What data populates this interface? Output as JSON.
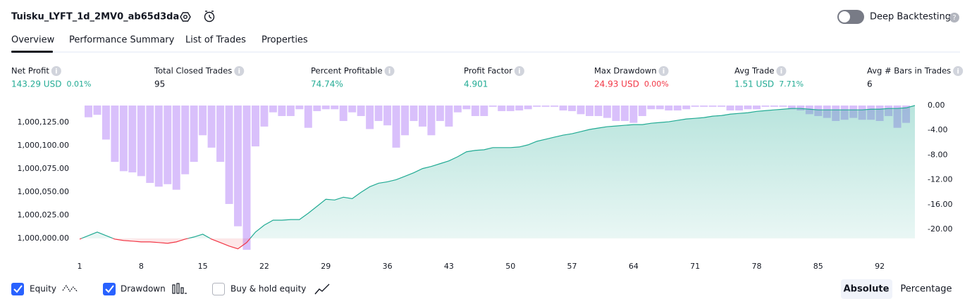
{
  "header": {
    "title": "Tuisku_LYFT_1d_2MV0_ab65d3da",
    "toggle_label": "Deep Backtesting"
  },
  "tabs": [
    "Overview",
    "Performance Summary",
    "List of Trades",
    "Properties"
  ],
  "metrics": [
    {
      "label": "Net Profit",
      "value": "143.29 USD",
      "extra": "0.01%"
    },
    {
      "label": "Total Closed Trades",
      "value": "95"
    },
    {
      "label": "Percent Profitable",
      "value": "74.74%"
    },
    {
      "label": "Profit Factor",
      "value": "4.901"
    },
    {
      "label": "Max Drawdown",
      "value": "24.93 USD",
      "extra": "0.00%"
    },
    {
      "label": "Avg Trade",
      "value": "1.51 USD",
      "extra": "7.71%"
    },
    {
      "label": "Avg # Bars in Trades",
      "value": "6"
    }
  ],
  "chart_data": {
    "type": "line",
    "x": [
      1,
      2,
      3,
      4,
      5,
      6,
      7,
      8,
      9,
      10,
      11,
      12,
      13,
      14,
      15,
      16,
      17,
      18,
      19,
      20,
      21,
      22,
      23,
      24,
      25,
      26,
      27,
      28,
      29,
      30,
      31,
      32,
      33,
      34,
      35,
      36,
      37,
      38,
      39,
      40,
      41,
      42,
      43,
      44,
      45,
      46,
      47,
      48,
      49,
      50,
      51,
      52,
      53,
      54,
      55,
      56,
      57,
      58,
      59,
      60,
      61,
      62,
      63,
      64,
      65,
      66,
      67,
      68,
      69,
      70,
      71,
      72,
      73,
      74,
      75,
      76,
      77,
      78,
      79,
      80,
      81,
      82,
      83,
      84,
      85,
      86,
      87,
      88,
      89,
      90,
      91,
      92,
      93,
      94,
      95,
      96
    ],
    "series": [
      {
        "name": "Equity",
        "color": "#22ab94",
        "values": [
          999999.2,
          1000003,
          1000006.8,
          1000003,
          999999.2,
          999997.7,
          999997,
          999996.2,
          999996.2,
          999995.5,
          999994.7,
          999996.2,
          999999.2,
          1000001.5,
          1000004.5,
          999999.2,
          999995.5,
          999991.7,
          999988.7,
          999995.5,
          1000006.8,
          1000014.3,
          1000019.6,
          1000019.6,
          1000020.3,
          1000020.3,
          1000027.1,
          1000034.6,
          1000042.2,
          1000041.4,
          1000044.4,
          1000042.9,
          1000049.7,
          1000055.7,
          1000059.5,
          1000061,
          1000063.3,
          1000067,
          1000070.8,
          1000075.3,
          1000077.6,
          1000080.6,
          1000083.6,
          1000088.1,
          1000093.4,
          1000094.9,
          1000095.6,
          1000097.9,
          1000097.9,
          1000097.9,
          1000098.6,
          1000100.9,
          1000104.7,
          1000106.9,
          1000109.2,
          1000111.4,
          1000112.9,
          1000115.2,
          1000117.5,
          1000119,
          1000120.5,
          1000121.2,
          1000122,
          1000122.7,
          1000122.7,
          1000124.2,
          1000125,
          1000125.8,
          1000127.3,
          1000128.8,
          1000129.5,
          1000130.3,
          1000131.8,
          1000132.5,
          1000134,
          1000134.8,
          1000135.5,
          1000137,
          1000137.8,
          1000138.6,
          1000139.3,
          1000140.1,
          1000140.1,
          1000139.3,
          1000138.6,
          1000138.6,
          1000138.6,
          1000138.6,
          1000138.6,
          1000138.6,
          1000139.3,
          1000139.3,
          1000140.1,
          1000140.1,
          1000140.8,
          1000143.29
        ]
      },
      {
        "name": "Drawdown",
        "type": "bar",
        "axis": "y2",
        "color": "#b98cf7",
        "values": [
          null,
          -1.9,
          -1.5,
          -5.5,
          -9.1,
          -10.6,
          -10.8,
          -11.4,
          -12.5,
          -13.1,
          -12.7,
          -13.6,
          -11.1,
          -9.1,
          -4.8,
          -6.8,
          -9.1,
          -15.9,
          -19.5,
          -23.3,
          -6.6,
          -3.4,
          -1.1,
          -1.7,
          -1.7,
          -0.6,
          -3.6,
          -0.9,
          -0.6,
          -0.6,
          -2.5,
          -1.1,
          -1.7,
          -3.8,
          -2.5,
          -3.2,
          -6.8,
          -4.8,
          -2.5,
          -3.4,
          -4.8,
          -2.5,
          -3.4,
          -1.1,
          -0.6,
          -1.7,
          -1.7,
          -0.2,
          -0.9,
          -0.9,
          -0.8,
          -0.6,
          -0.2,
          -0.2,
          -0.2,
          -0.8,
          -0.9,
          -1.4,
          -1.7,
          -1.7,
          -2,
          -2.5,
          -2.5,
          -2.8,
          -1.7,
          -0.6,
          -0.6,
          -0.8,
          -0.8,
          -0.6,
          -0.2,
          -0.2,
          -0.2,
          -0.2,
          -0.8,
          -0.8,
          -0.6,
          -0.6,
          -0.2,
          -0.2,
          -0.2,
          -0.6,
          -0.8,
          -1.4,
          -1.7,
          -2,
          -2.5,
          -2.3,
          -2,
          -2.3,
          -2.3,
          -2.5,
          -1.7,
          -3.6,
          -2.8,
          null
        ]
      }
    ],
    "xlim": [
      1,
      96
    ],
    "xticks": [
      1,
      8,
      15,
      22,
      29,
      36,
      43,
      50,
      57,
      64,
      71,
      78,
      85,
      92
    ],
    "ylim": [
      999987,
      1000143.29
    ],
    "yticks": [
      {
        "value": 1000000,
        "label": "1,000,000.00"
      },
      {
        "value": 1000025,
        "label": "1,000,025.00"
      },
      {
        "value": 1000050,
        "label": "1,000,050.00"
      },
      {
        "value": 1000075,
        "label": "1,000,075.00"
      },
      {
        "value": 1000100,
        "label": "1,000,100.00"
      },
      {
        "value": 1000125,
        "label": "1,000,125.00"
      }
    ],
    "y2lim": [
      -23.4,
      0
    ],
    "y2ticks": [
      {
        "value": 0,
        "label": "0.00"
      },
      {
        "value": -4,
        "label": "-4.00"
      },
      {
        "value": -8,
        "label": "-8.00"
      },
      {
        "value": -12,
        "label": "-12.00"
      },
      {
        "value": -16,
        "label": "-16.00"
      },
      {
        "value": -20,
        "label": "-20.00"
      }
    ],
    "below_color": "#f23645"
  },
  "controls": {
    "buy_hold": "Buy & hold equity",
    "absolute": "Absolute",
    "percentage": "Percentage"
  }
}
